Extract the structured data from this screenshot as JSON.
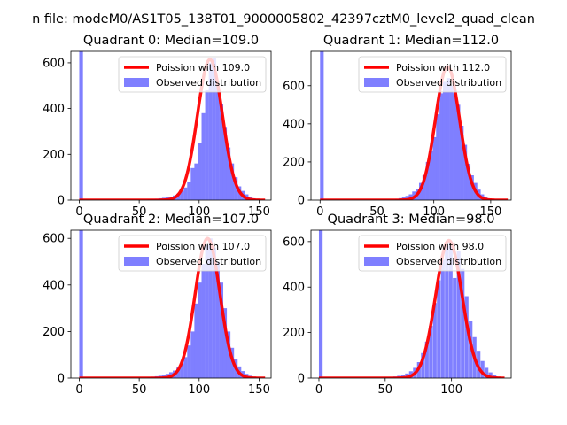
{
  "figure": {
    "suptitle": "n file: modeM0/AS1T05_138T01_9000005802_42397cztM0_level2_quad_clean",
    "colors": {
      "histogram": "#7f7fff",
      "histogram_edge": "#0000ff",
      "fit_line": "#ff0000"
    }
  },
  "chart_data": [
    {
      "type": "bar",
      "title": "Quadrant 0: Median=109.0",
      "xlabel": "",
      "ylabel": "",
      "xlim": [
        -7,
        160
      ],
      "ylim": [
        0,
        650
      ],
      "x_ticks": [
        0,
        50,
        100,
        150
      ],
      "y_ticks": [
        0,
        200,
        400,
        600
      ],
      "legend": {
        "placement": "upper right",
        "entries": [
          "Poission with 109.0",
          "Observed distribution"
        ]
      },
      "bin_width": 3.1,
      "hist": [
        {
          "x": 0,
          "y": 650
        },
        {
          "x": 57,
          "y": 4
        },
        {
          "x": 60,
          "y": 5
        },
        {
          "x": 63,
          "y": 6
        },
        {
          "x": 66,
          "y": 8
        },
        {
          "x": 69,
          "y": 10
        },
        {
          "x": 72,
          "y": 12
        },
        {
          "x": 75,
          "y": 15
        },
        {
          "x": 78,
          "y": 20
        },
        {
          "x": 81,
          "y": 28
        },
        {
          "x": 84,
          "y": 38
        },
        {
          "x": 87,
          "y": 55
        },
        {
          "x": 90,
          "y": 80
        },
        {
          "x": 93,
          "y": 140
        },
        {
          "x": 96,
          "y": 160
        },
        {
          "x": 99,
          "y": 250
        },
        {
          "x": 102,
          "y": 380
        },
        {
          "x": 105,
          "y": 480
        },
        {
          "x": 108,
          "y": 600
        },
        {
          "x": 111,
          "y": 620
        },
        {
          "x": 114,
          "y": 500
        },
        {
          "x": 117,
          "y": 420
        },
        {
          "x": 120,
          "y": 320
        },
        {
          "x": 123,
          "y": 230
        },
        {
          "x": 126,
          "y": 160
        },
        {
          "x": 129,
          "y": 100
        },
        {
          "x": 132,
          "y": 60
        },
        {
          "x": 135,
          "y": 40
        },
        {
          "x": 138,
          "y": 25
        },
        {
          "x": 141,
          "y": 14
        },
        {
          "x": 144,
          "y": 8
        },
        {
          "x": 147,
          "y": 5
        },
        {
          "x": 150,
          "y": 3
        }
      ],
      "fit": {
        "name": "Poission with 109.0",
        "mean": 109.0,
        "peak": 615,
        "sigma": 10.4,
        "x_range": [
          0,
          155
        ]
      }
    },
    {
      "type": "bar",
      "title": "Quadrant 1: Median=112.0",
      "xlabel": "",
      "ylabel": "",
      "xlim": [
        -8,
        168
      ],
      "ylim": [
        0,
        780
      ],
      "x_ticks": [
        0,
        50,
        100,
        150
      ],
      "y_ticks": [
        0,
        200,
        400,
        600
      ],
      "legend": {
        "placement": "upper right",
        "entries": [
          "Poission with 112.0",
          "Observed distribution"
        ]
      },
      "bin_width": 3.2,
      "hist": [
        {
          "x": 0,
          "y": 780
        },
        {
          "x": 66,
          "y": 6
        },
        {
          "x": 69,
          "y": 10
        },
        {
          "x": 72,
          "y": 16
        },
        {
          "x": 75,
          "y": 22
        },
        {
          "x": 78,
          "y": 30
        },
        {
          "x": 81,
          "y": 45
        },
        {
          "x": 84,
          "y": 60
        },
        {
          "x": 87,
          "y": 90
        },
        {
          "x": 90,
          "y": 130
        },
        {
          "x": 93,
          "y": 200
        },
        {
          "x": 96,
          "y": 260
        },
        {
          "x": 99,
          "y": 330
        },
        {
          "x": 102,
          "y": 450
        },
        {
          "x": 105,
          "y": 560
        },
        {
          "x": 108,
          "y": 620
        },
        {
          "x": 111,
          "y": 640
        },
        {
          "x": 114,
          "y": 600
        },
        {
          "x": 117,
          "y": 560
        },
        {
          "x": 120,
          "y": 500
        },
        {
          "x": 123,
          "y": 390
        },
        {
          "x": 126,
          "y": 290
        },
        {
          "x": 129,
          "y": 190
        },
        {
          "x": 132,
          "y": 130
        },
        {
          "x": 135,
          "y": 90
        },
        {
          "x": 138,
          "y": 55
        },
        {
          "x": 141,
          "y": 30
        },
        {
          "x": 144,
          "y": 16
        },
        {
          "x": 147,
          "y": 8
        },
        {
          "x": 150,
          "y": 4
        }
      ],
      "fit": {
        "name": "Poission with 112.0",
        "mean": 112.0,
        "peak": 700,
        "sigma": 10.6,
        "x_range": [
          0,
          165
        ]
      }
    },
    {
      "type": "bar",
      "title": "Quadrant 2: Median=107.0",
      "xlabel": "",
      "ylabel": "",
      "xlim": [
        -7,
        160
      ],
      "ylim": [
        0,
        635
      ],
      "x_ticks": [
        0,
        50,
        100,
        150
      ],
      "y_ticks": [
        0,
        200,
        400,
        600
      ],
      "legend": {
        "placement": "upper right",
        "entries": [
          "Poission with 107.0",
          "Observed distribution"
        ]
      },
      "bin_width": 3.1,
      "hist": [
        {
          "x": 0,
          "y": 635
        },
        {
          "x": 57,
          "y": 4
        },
        {
          "x": 60,
          "y": 6
        },
        {
          "x": 63,
          "y": 8
        },
        {
          "x": 66,
          "y": 10
        },
        {
          "x": 69,
          "y": 14
        },
        {
          "x": 72,
          "y": 18
        },
        {
          "x": 75,
          "y": 25
        },
        {
          "x": 78,
          "y": 32
        },
        {
          "x": 81,
          "y": 45
        },
        {
          "x": 84,
          "y": 60
        },
        {
          "x": 87,
          "y": 90
        },
        {
          "x": 90,
          "y": 140
        },
        {
          "x": 93,
          "y": 200
        },
        {
          "x": 96,
          "y": 320
        },
        {
          "x": 99,
          "y": 410
        },
        {
          "x": 102,
          "y": 490
        },
        {
          "x": 105,
          "y": 570
        },
        {
          "x": 108,
          "y": 600
        },
        {
          "x": 111,
          "y": 560
        },
        {
          "x": 114,
          "y": 500
        },
        {
          "x": 117,
          "y": 410
        },
        {
          "x": 120,
          "y": 300
        },
        {
          "x": 123,
          "y": 200
        },
        {
          "x": 126,
          "y": 130
        },
        {
          "x": 129,
          "y": 80
        },
        {
          "x": 132,
          "y": 50
        },
        {
          "x": 135,
          "y": 30
        },
        {
          "x": 138,
          "y": 18
        },
        {
          "x": 141,
          "y": 10
        },
        {
          "x": 144,
          "y": 6
        },
        {
          "x": 147,
          "y": 3
        }
      ],
      "fit": {
        "name": "Poission with 107.0",
        "mean": 107.0,
        "peak": 600,
        "sigma": 10.3,
        "x_range": [
          0,
          155
        ]
      }
    },
    {
      "type": "bar",
      "title": "Quadrant 3: Median=98.0",
      "xlabel": "",
      "ylabel": "",
      "xlim": [
        -6,
        145
      ],
      "ylim": [
        0,
        650
      ],
      "x_ticks": [
        0,
        50,
        100
      ],
      "y_ticks": [
        0,
        200,
        400,
        600
      ],
      "legend": {
        "placement": "upper right",
        "entries": [
          "Poission with 98.0",
          "Observed distribution"
        ]
      },
      "bin_width": 2.8,
      "hist": [
        {
          "x": 0,
          "y": 650
        },
        {
          "x": 50,
          "y": 4
        },
        {
          "x": 53,
          "y": 5
        },
        {
          "x": 56,
          "y": 7
        },
        {
          "x": 59,
          "y": 10
        },
        {
          "x": 62,
          "y": 14
        },
        {
          "x": 65,
          "y": 20
        },
        {
          "x": 68,
          "y": 30
        },
        {
          "x": 71,
          "y": 45
        },
        {
          "x": 74,
          "y": 70
        },
        {
          "x": 77,
          "y": 110
        },
        {
          "x": 80,
          "y": 160
        },
        {
          "x": 83,
          "y": 230
        },
        {
          "x": 86,
          "y": 330
        },
        {
          "x": 89,
          "y": 430
        },
        {
          "x": 92,
          "y": 520
        },
        {
          "x": 95,
          "y": 580
        },
        {
          "x": 98,
          "y": 600
        },
        {
          "x": 101,
          "y": 440
        },
        {
          "x": 104,
          "y": 560
        },
        {
          "x": 107,
          "y": 480
        },
        {
          "x": 110,
          "y": 360
        },
        {
          "x": 113,
          "y": 250
        },
        {
          "x": 116,
          "y": 180
        },
        {
          "x": 119,
          "y": 120
        },
        {
          "x": 122,
          "y": 75
        },
        {
          "x": 125,
          "y": 45
        },
        {
          "x": 128,
          "y": 25
        },
        {
          "x": 131,
          "y": 12
        },
        {
          "x": 134,
          "y": 6
        }
      ],
      "fit": {
        "name": "Poission with 98.0",
        "mean": 98.0,
        "peak": 605,
        "sigma": 9.9,
        "x_range": [
          0,
          140
        ]
      }
    }
  ]
}
